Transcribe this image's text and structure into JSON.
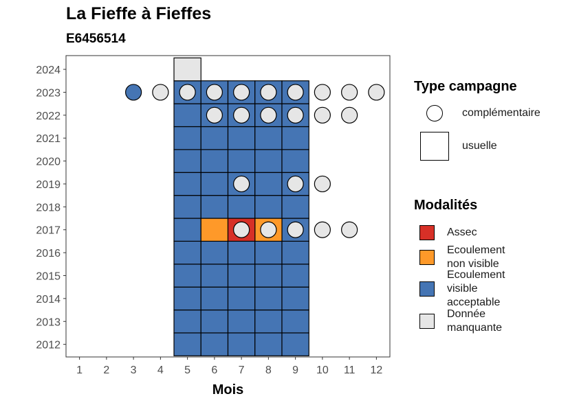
{
  "chart_data": {
    "type": "heatmap",
    "title": "La Fieffe à Fieffes",
    "subtitle": "E6456514",
    "xlabel": "Mois",
    "ylabel": "",
    "x_ticks": [
      1,
      2,
      3,
      4,
      5,
      6,
      7,
      8,
      9,
      10,
      11,
      12
    ],
    "y_ticks": [
      2012,
      2013,
      2014,
      2015,
      2016,
      2017,
      2018,
      2019,
      2020,
      2021,
      2022,
      2023,
      2024
    ],
    "xlim": [
      0.5,
      12.5
    ],
    "ylim": [
      2011.45,
      2024.6
    ],
    "grid": false,
    "legend_placement": "right",
    "colors": {
      "assec": "#d73027",
      "non_visible": "#fe9929",
      "visible": "#4575b4",
      "manquante": "#e6e6e6"
    },
    "legend_type": {
      "title": "Type campagne",
      "items": [
        {
          "label": "complémentaire",
          "shape": "circle"
        },
        {
          "label": "usuelle",
          "shape": "square"
        }
      ]
    },
    "legend_mod": {
      "title": "Modalités",
      "items": [
        {
          "key": "assec",
          "label_lines": [
            "Assec"
          ]
        },
        {
          "key": "non_visible",
          "label_lines": [
            "Ecoulement",
            "non visible"
          ]
        },
        {
          "key": "visible",
          "label_lines": [
            "Ecoulement",
            "visible",
            "acceptable"
          ]
        },
        {
          "key": "manquante",
          "label_lines": [
            "Donnée",
            "manquante"
          ]
        }
      ]
    },
    "usuelle": [
      {
        "year": 2012,
        "months": [
          5,
          6,
          7,
          8,
          9
        ],
        "value": "visible"
      },
      {
        "year": 2013,
        "months": [
          5,
          6,
          7,
          8,
          9
        ],
        "value": "visible"
      },
      {
        "year": 2014,
        "months": [
          5,
          6,
          7,
          8,
          9
        ],
        "value": "visible"
      },
      {
        "year": 2015,
        "months": [
          5,
          6,
          7,
          8,
          9
        ],
        "value": "visible"
      },
      {
        "year": 2016,
        "months": [
          5,
          6,
          7,
          8,
          9
        ],
        "value": "visible"
      },
      {
        "year": 2017,
        "months": [
          5,
          9
        ],
        "value": "visible"
      },
      {
        "year": 2017,
        "months": [
          6,
          8
        ],
        "value": "non_visible"
      },
      {
        "year": 2017,
        "months": [
          7
        ],
        "value": "assec"
      },
      {
        "year": 2018,
        "months": [
          5,
          6,
          7,
          8,
          9
        ],
        "value": "visible"
      },
      {
        "year": 2019,
        "months": [
          5,
          6,
          7,
          8,
          9
        ],
        "value": "visible"
      },
      {
        "year": 2020,
        "months": [
          5,
          6,
          7,
          8,
          9
        ],
        "value": "visible"
      },
      {
        "year": 2021,
        "months": [
          5,
          6,
          7,
          8,
          9
        ],
        "value": "visible"
      },
      {
        "year": 2022,
        "months": [
          5,
          6,
          7,
          8,
          9
        ],
        "value": "visible"
      },
      {
        "year": 2023,
        "months": [
          5,
          6,
          7,
          8,
          9
        ],
        "value": "visible"
      },
      {
        "year": 2024,
        "months": [
          5
        ],
        "value": "manquante"
      }
    ],
    "complementaire": [
      {
        "year": 2017,
        "months": [
          7,
          8,
          9,
          10,
          11
        ],
        "value": "manquante"
      },
      {
        "year": 2019,
        "months": [
          7,
          9,
          10
        ],
        "value": "manquante"
      },
      {
        "year": 2022,
        "months": [
          6,
          7,
          8,
          9,
          10,
          11
        ],
        "value": "manquante"
      },
      {
        "year": 2023,
        "months": [
          3
        ],
        "value": "visible"
      },
      {
        "year": 2023,
        "months": [
          4,
          5,
          6,
          7,
          8,
          9,
          10,
          11,
          12
        ],
        "value": "manquante"
      }
    ]
  }
}
